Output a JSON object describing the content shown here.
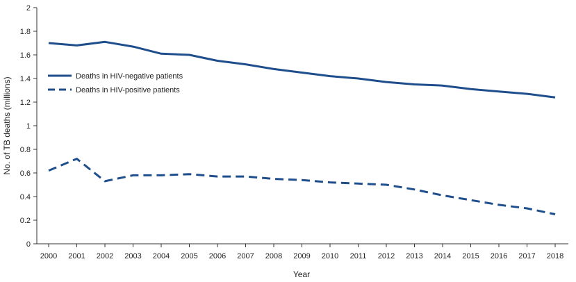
{
  "chart_data": {
    "type": "line",
    "title": "",
    "xlabel": "Year",
    "ylabel": "No. of TB deaths (millions)",
    "x": [
      2000,
      2001,
      2002,
      2003,
      2004,
      2005,
      2006,
      2007,
      2008,
      2009,
      2010,
      2011,
      2012,
      2013,
      2014,
      2015,
      2016,
      2017,
      2018
    ],
    "ylim": [
      0,
      2
    ],
    "yticks": [
      "0",
      "0.2",
      "0.4",
      "0.6",
      "0.8",
      "1",
      "1.2",
      "1.4",
      "1.6",
      "1.8",
      "2"
    ],
    "grid": false,
    "legend_position": "left",
    "series": [
      {
        "name": "Deaths in HIV-negative patients",
        "style": "solid",
        "color": "#1f4e8c",
        "values": [
          1.7,
          1.68,
          1.71,
          1.67,
          1.61,
          1.6,
          1.55,
          1.52,
          1.48,
          1.45,
          1.42,
          1.4,
          1.37,
          1.35,
          1.34,
          1.31,
          1.29,
          1.27,
          1.24
        ]
      },
      {
        "name": "Deaths in HIV-positive patients",
        "style": "dashed",
        "color": "#1f4e8c",
        "values": [
          0.62,
          0.72,
          0.53,
          0.58,
          0.58,
          0.59,
          0.57,
          0.57,
          0.55,
          0.54,
          0.52,
          0.51,
          0.5,
          0.46,
          0.41,
          0.37,
          0.33,
          0.3,
          0.25
        ]
      }
    ]
  }
}
